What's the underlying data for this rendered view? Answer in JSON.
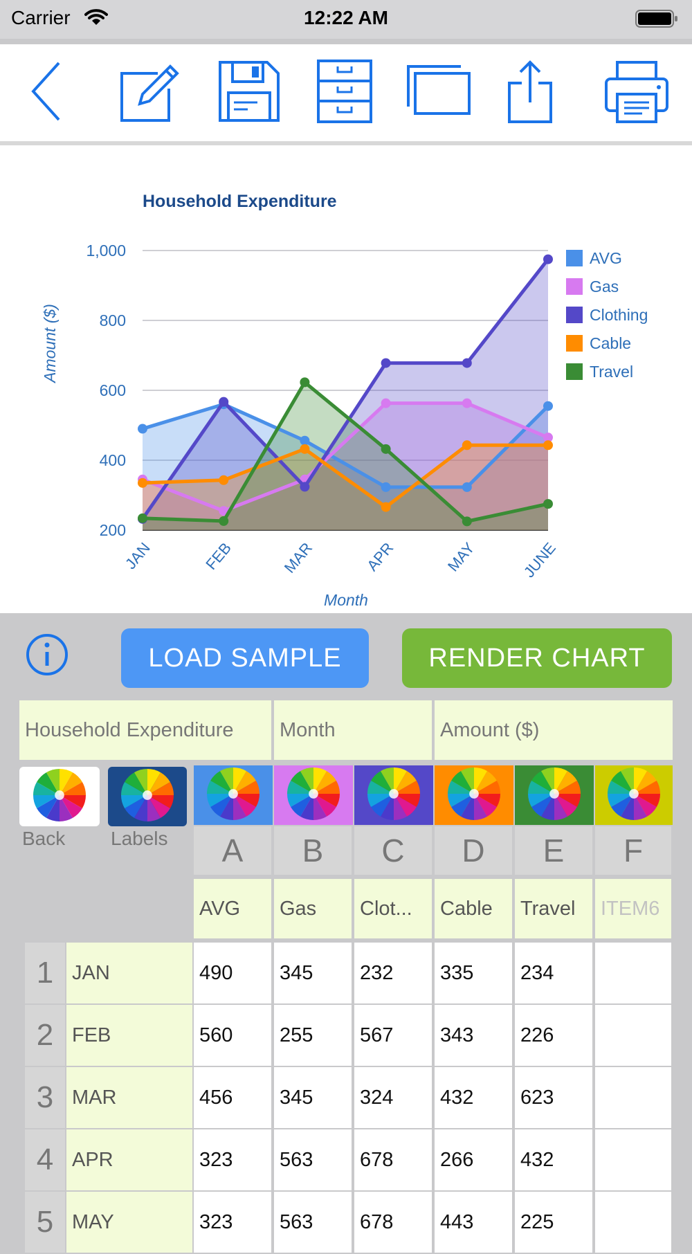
{
  "status": {
    "carrier": "Carrier",
    "time": "12:22 AM"
  },
  "toolbar": {
    "icons": [
      "back-icon",
      "edit-icon",
      "save-icon",
      "cabinet-icon",
      "windows-icon",
      "share-icon",
      "print-icon"
    ],
    "accent": "#1a73e8"
  },
  "chart_data": {
    "type": "area",
    "title": "Household Expenditure",
    "xlabel": "Month",
    "ylabel": "Amount ($)",
    "categories": [
      "JAN",
      "FEB",
      "MAR",
      "APR",
      "MAY",
      "JUNE"
    ],
    "ylim": [
      200,
      1000
    ],
    "yticks": [
      "200",
      "400",
      "600",
      "800",
      "1,000"
    ],
    "grid": true,
    "legend_position": "right",
    "series": [
      {
        "name": "AVG",
        "color": "#4a90e8",
        "values": [
          490,
          560,
          456,
          323,
          323,
          555
        ]
      },
      {
        "name": "Gas",
        "color": "#d77af0",
        "values": [
          345,
          255,
          345,
          563,
          563,
          465
        ]
      },
      {
        "name": "Clothing",
        "color": "#5448c8",
        "values": [
          232,
          567,
          324,
          678,
          678,
          975
        ]
      },
      {
        "name": "Cable",
        "color": "#ff8c00",
        "values": [
          335,
          343,
          432,
          266,
          443,
          443
        ]
      },
      {
        "name": "Travel",
        "color": "#3a8c35",
        "values": [
          234,
          226,
          623,
          432,
          225,
          275
        ]
      }
    ]
  },
  "controls": {
    "load_label": "LOAD SAMPLE",
    "render_label": "RENDER CHART"
  },
  "sheet": {
    "title": "Household Expenditure",
    "x_label": "Month",
    "y_label": "Amount ($)",
    "back_label": "Back",
    "labels_label": "Labels",
    "column_letters": [
      "A",
      "B",
      "C",
      "D",
      "E",
      "F"
    ],
    "column_colors": [
      "#4a90e8",
      "#d77af0",
      "#5448c8",
      "#ff8c00",
      "#3a8c35",
      "#cccc00"
    ],
    "column_names": [
      "AVG",
      "Gas",
      "Clot...",
      "Cable",
      "Travel",
      "ITEM6"
    ],
    "rows": [
      {
        "num": "1",
        "label": "JAN",
        "values": [
          "490",
          "345",
          "232",
          "335",
          "234",
          ""
        ]
      },
      {
        "num": "2",
        "label": "FEB",
        "values": [
          "560",
          "255",
          "567",
          "343",
          "226",
          ""
        ]
      },
      {
        "num": "3",
        "label": "MAR",
        "values": [
          "456",
          "345",
          "324",
          "432",
          "623",
          ""
        ]
      },
      {
        "num": "4",
        "label": "APR",
        "values": [
          "323",
          "563",
          "678",
          "266",
          "432",
          ""
        ]
      },
      {
        "num": "5",
        "label": "MAY",
        "values": [
          "323",
          "563",
          "678",
          "443",
          "225",
          ""
        ]
      }
    ]
  }
}
